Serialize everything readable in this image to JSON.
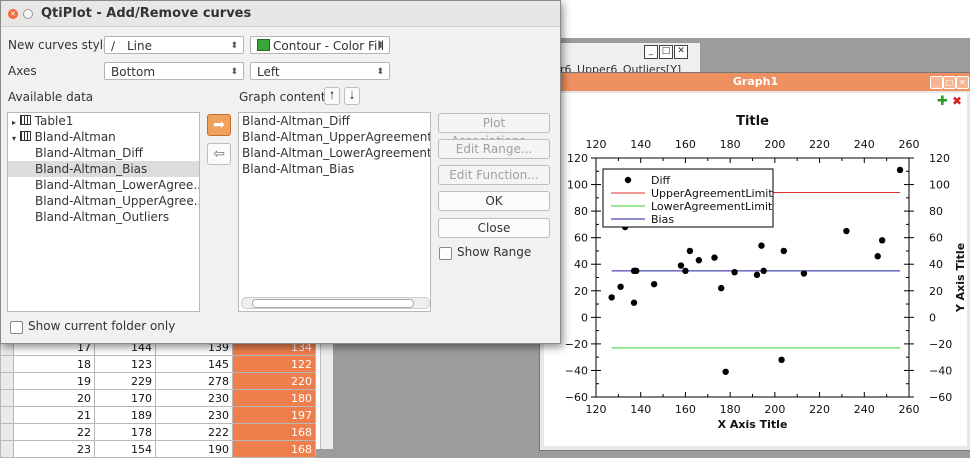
{
  "dialog": {
    "title": "QtiPlot - Add/Remove curves",
    "new_curves_style_label": "New curves style",
    "style_value": "Line",
    "contour_value": "Contour - Color Fill",
    "axes_label": "Axes",
    "x_axis_value": "Bottom",
    "y_axis_value": "Left",
    "available_data_label": "Available data",
    "graph_contents_label": "Graph contents",
    "available_items": [
      "Table1",
      "Bland-Altman",
      "Bland-Altman_Diff",
      "Bland-Altman_Bias",
      "Bland-Altman_LowerAgree...",
      "Bland-Altman_UpperAgree...",
      "Bland-Altman_Outliers"
    ],
    "graph_items": [
      "Bland-Altman_Diff",
      "Bland-Altman_UpperAgreementLim",
      "Bland-Altman_LowerAgreementLim",
      "Bland-Altman_Bias"
    ],
    "buttons": {
      "plot_assoc": "Plot Associations...",
      "edit_range": "Edit Range...",
      "edit_function": "Edit Function...",
      "ok": "OK",
      "close": "Close"
    },
    "show_range_label": "Show Range",
    "show_current_folder_label": "Show current folder only",
    "icons": {
      "add": "arrow-right-icon",
      "remove": "arrow-left-icon",
      "up": "arrow-up-icon",
      "down": "arrow-down-icon",
      "table": "table-icon"
    }
  },
  "table_window": {
    "title_fragment": "r6_Upper6_Outliers[Y]"
  },
  "sheet": {
    "rows": [
      {
        "n": "17",
        "a": "144",
        "b": "139",
        "c": "134"
      },
      {
        "n": "18",
        "a": "123",
        "b": "145",
        "c": "122"
      },
      {
        "n": "19",
        "a": "229",
        "b": "278",
        "c": "220"
      },
      {
        "n": "20",
        "a": "170",
        "b": "230",
        "c": "180"
      },
      {
        "n": "21",
        "a": "189",
        "b": "230",
        "c": "197"
      },
      {
        "n": "22",
        "a": "178",
        "b": "222",
        "c": "168"
      },
      {
        "n": "23",
        "a": "154",
        "b": "190",
        "c": "168"
      }
    ]
  },
  "graph": {
    "window_title": "Graph1",
    "chart_data": {
      "type": "scatter",
      "title": "Title",
      "xlabel": "X Axis Title",
      "ylabel": "Y Axis Title",
      "xlim": [
        120,
        260
      ],
      "ylim": [
        -60,
        120
      ],
      "x_ticks": [
        "120",
        "140",
        "160",
        "180",
        "200",
        "220",
        "240",
        "260"
      ],
      "y_ticks": [
        "-60",
        "-40",
        "-20",
        "0",
        "20",
        "40",
        "60",
        "80",
        "100",
        "120"
      ],
      "legend_position": "top-left",
      "series": [
        {
          "name": "Diff",
          "kind": "points",
          "color": "#000000",
          "x": [
            127,
            131,
            133,
            137,
            137,
            138,
            146,
            158,
            160,
            162,
            166,
            173,
            176,
            178,
            182,
            192,
            194,
            195,
            203,
            204,
            213,
            232,
            246,
            248,
            256
          ],
          "y": [
            15,
            23,
            68,
            35,
            11,
            35,
            25,
            39,
            35,
            50,
            43,
            45,
            22,
            -41,
            34,
            32,
            54,
            35,
            -32,
            50,
            33,
            65,
            46,
            58,
            111
          ]
        },
        {
          "name": "UpperAgreementLimit",
          "kind": "hline",
          "color": "#e03030",
          "value": 94
        },
        {
          "name": "LowerAgreementLimit",
          "kind": "hline",
          "color": "#30d030",
          "value": -23
        },
        {
          "name": "Bias",
          "kind": "hline",
          "color": "#1a1aa0",
          "value": 35
        }
      ]
    }
  }
}
